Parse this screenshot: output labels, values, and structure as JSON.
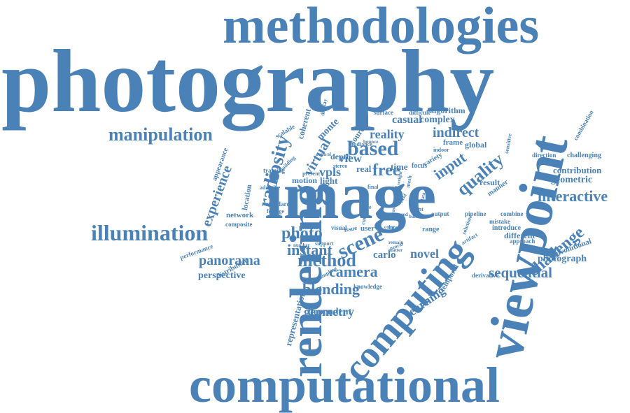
{
  "color": "#4a82b8",
  "words": [
    "methodologies",
    "photography",
    "computational",
    "image",
    "viewpoint",
    "rendering",
    "computing",
    "manipulation",
    "illumination",
    "radiosity",
    "experience",
    "based",
    "free",
    "input",
    "quality",
    "interactive",
    "challenge",
    "sequential",
    "photograph",
    "contribution",
    "geometric",
    "combination",
    "challenging",
    "direction",
    "reality",
    "indirect",
    "casual",
    "complex",
    "algorithm",
    "difficult",
    "surface",
    "virtual",
    "coherent",
    "monte",
    "scalable",
    "display",
    "source",
    "radiance",
    "bounce",
    "frame",
    "global",
    "indoor",
    "sensitive",
    "depth",
    "stereo",
    "central",
    "building",
    "vpls",
    "real",
    "time",
    "focus",
    "variety",
    "view",
    "light",
    "motion",
    "training",
    "present",
    "adaptive",
    "location",
    "appearance",
    "network",
    "standard",
    "footage",
    "composite",
    "photo",
    "scene",
    "method",
    "instant",
    "panorama",
    "performance",
    "distribution",
    "perspective",
    "camera",
    "blending",
    "representation",
    "geometry",
    "dependent",
    "learning",
    "temporal",
    "derivative",
    "knowledge",
    "novel",
    "carlo",
    "sampling",
    "neural",
    "user",
    "issue",
    "visual",
    "possible",
    "support",
    "number",
    "scale",
    "current",
    "most",
    "remain",
    "matter",
    "range",
    "output",
    "solution",
    "artifact",
    "pipeline",
    "combine",
    "mistake",
    "introduce",
    "different",
    "approach",
    "convolutional",
    "result",
    "manner",
    "final",
    "mesh",
    "goal",
    "point",
    "buffer",
    "speed",
    "weight",
    "field",
    "case",
    "data",
    "color"
  ]
}
